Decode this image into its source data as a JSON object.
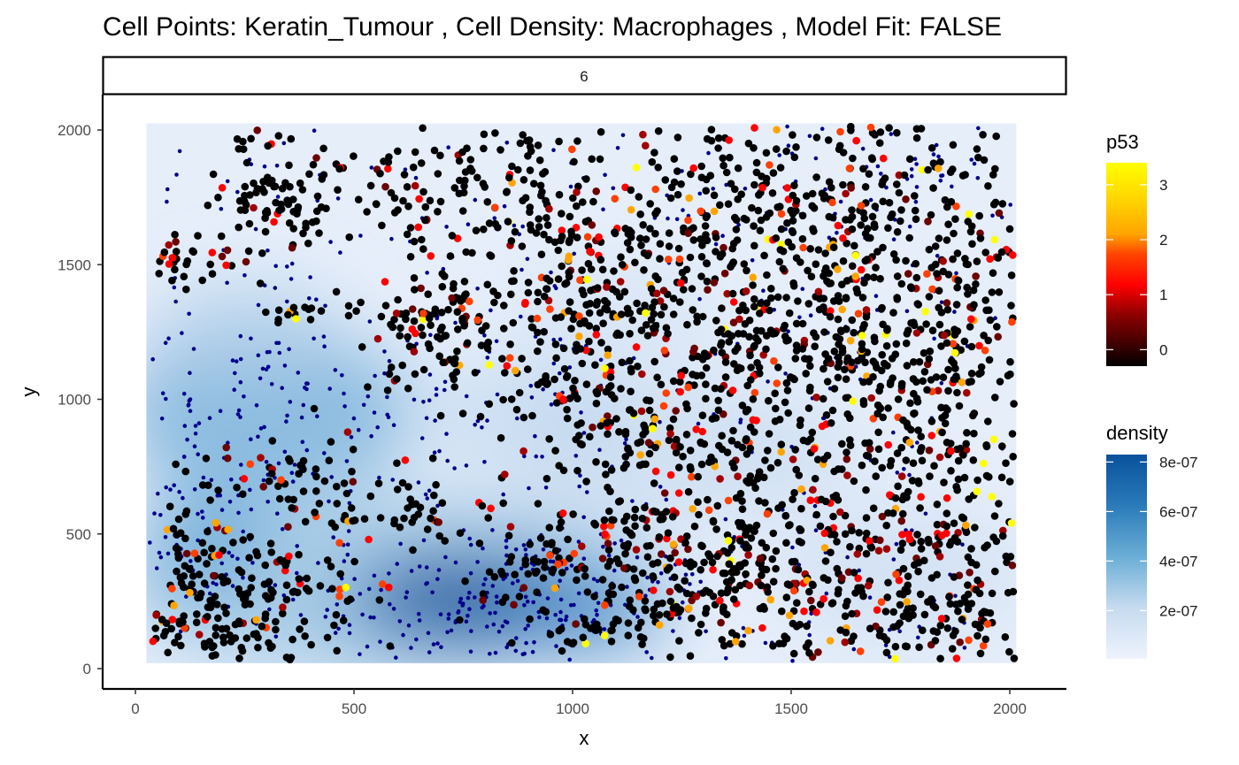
{
  "chart_data": {
    "type": "scatter",
    "title": "Cell Points: Keratin_Tumour , Cell Density: Macrophages , Model Fit: FALSE",
    "facet_label": "6",
    "xlabel": "x",
    "ylabel": "y",
    "xlim": [
      -50,
      2110
    ],
    "ylim": [
      -40,
      2055
    ],
    "x_ticks": [
      0,
      500,
      1000,
      1500,
      2000
    ],
    "y_ticks": [
      0,
      500,
      1000,
      1500,
      2000
    ],
    "x_tick_labels": [
      "0",
      "500",
      "1000",
      "1500",
      "2000"
    ],
    "y_tick_labels": [
      "0",
      "500",
      "1000",
      "1500",
      "2000"
    ],
    "grid": false,
    "legend_placement": "right",
    "density_field": {
      "extent_x": [
        25,
        2015
      ],
      "extent_y": [
        20,
        2025
      ],
      "description_hotspots": [
        {
          "x": 770,
          "y": 250,
          "peak": 8.2e-07
        },
        {
          "x": 300,
          "y": 1000,
          "peak": 5.5e-07
        },
        {
          "x": 170,
          "y": 450,
          "peak": 4e-07
        },
        {
          "x": 1050,
          "y": 200,
          "peak": 4.5e-07
        }
      ]
    },
    "legends": {
      "p53": {
        "title": "p53",
        "tick_values": [
          3,
          2,
          1,
          0
        ],
        "tick_labels": [
          "3",
          "2",
          "1",
          "0"
        ],
        "range": [
          -0.3,
          3.4
        ],
        "colors": [
          "#000000",
          "#8b0000",
          "#ff0000",
          "#ffa500",
          "#ffff00"
        ]
      },
      "density": {
        "title": "density",
        "tick_labels": [
          "8e-07",
          "6e-07",
          "4e-07",
          "2e-07"
        ],
        "tick_values": [
          8e-07,
          6e-07,
          4e-07,
          2e-07
        ],
        "range": [
          5e-09,
          8.3e-07
        ],
        "colors": [
          "#eef3fd",
          "#c6dbef",
          "#6baed6",
          "#2171b5",
          "#08519c"
        ]
      }
    },
    "series": [
      {
        "name": "Keratin_Tumour",
        "marker": "point",
        "color_by": "p53"
      },
      {
        "name": "Macrophages",
        "marker": "small-point",
        "color": "#00008b"
      }
    ]
  }
}
